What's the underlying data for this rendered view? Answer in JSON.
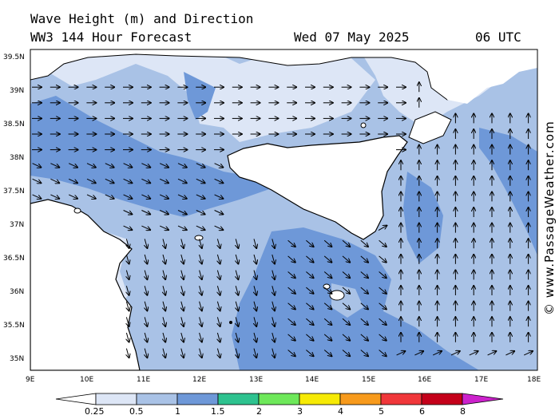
{
  "header": {
    "title_line1": "Wave Height (m) and Direction",
    "title_line2": "WW3 144 Hour Forecast",
    "date": "Wed 07 May 2025",
    "time": "06 UTC"
  },
  "credit": "© www.PassageWeather.com",
  "axes": {
    "lat_labels": [
      "39.5N",
      "39N",
      "38.5N",
      "38N",
      "37.5N",
      "37N",
      "36.5N",
      "36N",
      "35.5N",
      "35N"
    ],
    "lon_labels": [
      "9E",
      "10E",
      "11E",
      "12E",
      "13E",
      "14E",
      "15E",
      "16E",
      "17E",
      "18E"
    ]
  },
  "legend": {
    "labels": [
      "0.25",
      "0.5",
      "1",
      "1.5",
      "2",
      "3",
      "4",
      "5",
      "6",
      "8"
    ],
    "colors": [
      "#ffffff",
      "#dde6f6",
      "#a9c2e6",
      "#6e98d8",
      "#2ec28f",
      "#6ee85a",
      "#f6ea05",
      "#f79a1c",
      "#f0373a",
      "#c4001a",
      "#cc22cc"
    ]
  },
  "colors": {
    "land": "#ffffff",
    "sea_low": "#dde6f6",
    "sea_mid": "#a9c2e6",
    "sea_high": "#6e98d8"
  }
}
